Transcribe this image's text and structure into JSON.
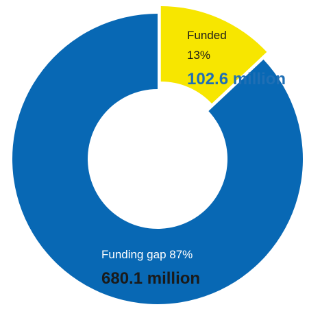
{
  "chart_data": {
    "type": "pie",
    "subtype": "donut",
    "slices": [
      {
        "key": "funded",
        "label": "Funded",
        "percent_label": "13%",
        "percent": 13,
        "value_label": "102.6 million",
        "value": 102.6,
        "unit": "million",
        "color": "#f7e600",
        "value_color": "#1f6fb5",
        "exploded": true
      },
      {
        "key": "gap",
        "label": "Funding gap 87%",
        "percent": 87,
        "value_label": "680.1 million",
        "value": 680.1,
        "unit": "million",
        "color": "#0868b4",
        "value_color": "#1a1a1a",
        "exploded": false
      }
    ],
    "colors": {
      "funded": "#f7e600",
      "gap": "#0868b4",
      "background": "#ffffff"
    }
  }
}
